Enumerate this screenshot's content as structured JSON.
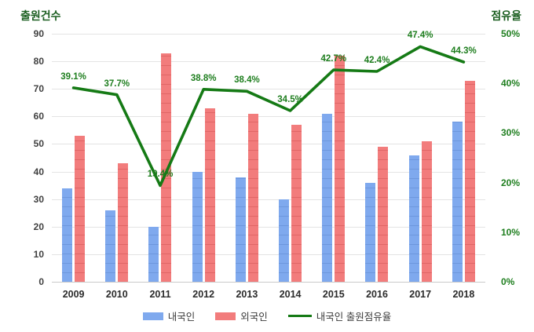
{
  "chart_data": {
    "type": "bar",
    "title": "",
    "categories": [
      "2009",
      "2010",
      "2011",
      "2012",
      "2013",
      "2014",
      "2015",
      "2016",
      "2017",
      "2018"
    ],
    "series": [
      {
        "name": "내국인",
        "type": "bar",
        "color": "#7fa9ee",
        "values": [
          34,
          26,
          20,
          40,
          38,
          30,
          61,
          36,
          46,
          58
        ]
      },
      {
        "name": "외국인",
        "type": "bar",
        "color": "#f27c7c",
        "values": [
          53,
          43,
          83,
          63,
          61,
          57,
          82,
          49,
          51,
          73
        ]
      },
      {
        "name": "내국인 출원점유율",
        "type": "line",
        "color": "#157a15",
        "axis": "right",
        "values_pct": [
          39.1,
          37.7,
          19.4,
          38.8,
          38.4,
          34.5,
          42.7,
          42.4,
          47.4,
          44.3
        ],
        "point_labels": [
          "39.1%",
          "37.7%",
          "19.4%",
          "38.8%",
          "38.4%",
          "34.5%",
          "42.7%",
          "42.4%",
          "47.4%",
          "44.3%"
        ]
      }
    ],
    "left_axis": {
      "title": "출원건수",
      "min": 0,
      "max": 90,
      "tick_step": 10,
      "ticks": [
        "90",
        "80",
        "70",
        "60",
        "50",
        "40",
        "30",
        "20",
        "10",
        "0"
      ]
    },
    "right_axis": {
      "title": "점유율",
      "min": 0,
      "max": 50,
      "ticks": [
        "50%",
        "40%",
        "30%",
        "20%",
        "10%",
        "0%"
      ],
      "tick_values": [
        50,
        40,
        30,
        20,
        10,
        0
      ]
    },
    "grid": "horizontal",
    "legend_position": "bottom"
  },
  "colors": {
    "domestic_bar": "#7fa9ee",
    "foreign_bar": "#f27c7c",
    "share_line": "#157a15",
    "axis_title": "#1b5e20",
    "right_tick": "#1e7e1e",
    "left_tick": "#404040",
    "gridline": "#e4e4e4"
  }
}
